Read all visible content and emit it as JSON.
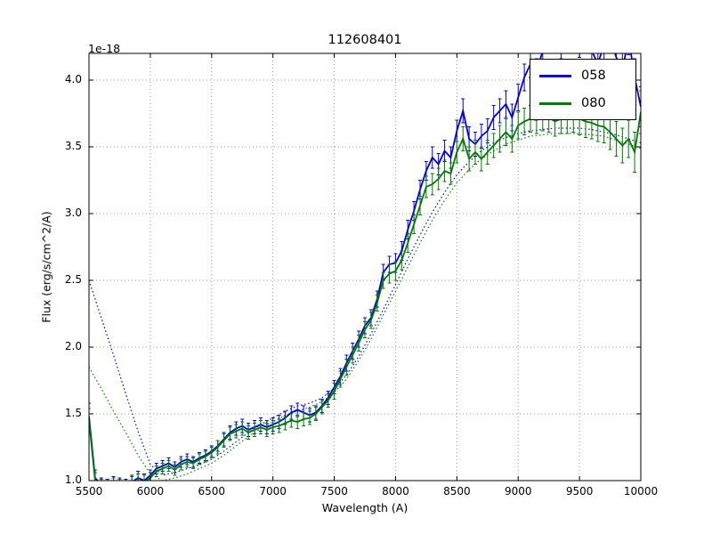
{
  "chart_data": {
    "type": "line",
    "title": "112608401",
    "xlabel": "Wavelength (A)",
    "ylabel": "Flux (erg/s/cm^2/A)",
    "y_offset_label": "1e-18",
    "xlim": [
      5500,
      10000
    ],
    "ylim": [
      1.0,
      4.2
    ],
    "xticks": [
      5500,
      6000,
      6500,
      7000,
      7500,
      8000,
      8500,
      9000,
      9500,
      10000
    ],
    "xtick_labels": [
      "5500",
      "6000",
      "6500",
      "7000",
      "7500",
      "8000",
      "8500",
      "9000",
      "9500",
      "10000"
    ],
    "yticks": [
      1.0,
      1.5,
      2.0,
      2.5,
      3.0,
      3.5,
      4.0
    ],
    "ytick_labels": [
      "1.0",
      "1.5",
      "2.0",
      "2.5",
      "3.0",
      "3.5",
      "4.0"
    ],
    "grid": true,
    "grid_color": "#999999",
    "background": "#ffffff",
    "legend_position": "upper right",
    "legend_labels": [
      "058",
      "080"
    ],
    "series": [
      {
        "name": "058",
        "style": "errorbar-line",
        "color": "#0000dc",
        "x": [
          5500,
          5550,
          5600,
          5650,
          5700,
          5750,
          5800,
          5850,
          5900,
          5950,
          6000,
          6050,
          6100,
          6150,
          6200,
          6250,
          6300,
          6350,
          6400,
          6450,
          6500,
          6550,
          6600,
          6650,
          6700,
          6750,
          6800,
          6850,
          6900,
          6950,
          7000,
          7050,
          7100,
          7150,
          7200,
          7250,
          7300,
          7350,
          7400,
          7450,
          7500,
          7550,
          7600,
          7650,
          7700,
          7750,
          7800,
          7850,
          7900,
          7950,
          8000,
          8050,
          8100,
          8150,
          8200,
          8250,
          8300,
          8350,
          8400,
          8450,
          8500,
          8550,
          8600,
          8650,
          8700,
          8750,
          8800,
          8850,
          8900,
          8950,
          9000,
          9050,
          9100,
          9150,
          9200,
          9250,
          9300,
          9350,
          9400,
          9450,
          9500,
          9550,
          9600,
          9650,
          9700,
          9750,
          9800,
          9850,
          9900,
          9950,
          10000
        ],
        "y": [
          1.48,
          1.02,
          0.97,
          0.96,
          0.98,
          0.97,
          0.96,
          0.99,
          1.02,
          1.0,
          1.04,
          1.09,
          1.11,
          1.13,
          1.1,
          1.14,
          1.16,
          1.14,
          1.17,
          1.19,
          1.22,
          1.26,
          1.31,
          1.36,
          1.39,
          1.41,
          1.38,
          1.4,
          1.42,
          1.4,
          1.42,
          1.44,
          1.47,
          1.51,
          1.53,
          1.51,
          1.49,
          1.51,
          1.56,
          1.62,
          1.7,
          1.78,
          1.88,
          1.97,
          2.06,
          2.16,
          2.22,
          2.36,
          2.56,
          2.62,
          2.63,
          2.72,
          2.88,
          3.02,
          3.18,
          3.32,
          3.42,
          3.37,
          3.47,
          3.42,
          3.62,
          3.77,
          3.56,
          3.52,
          3.58,
          3.62,
          3.72,
          3.77,
          3.82,
          3.72,
          3.87,
          4.02,
          4.12,
          4.06,
          4.22,
          4.38,
          4.32,
          4.27,
          4.42,
          4.33,
          4.28,
          4.38,
          4.22,
          4.12,
          4.27,
          4.32,
          4.17,
          4.07,
          4.32,
          4.02,
          3.8
        ],
        "yerr": [
          0.1,
          0.06,
          0.05,
          0.05,
          0.05,
          0.05,
          0.05,
          0.05,
          0.05,
          0.05,
          0.04,
          0.04,
          0.04,
          0.04,
          0.04,
          0.04,
          0.04,
          0.04,
          0.04,
          0.04,
          0.04,
          0.04,
          0.05,
          0.05,
          0.05,
          0.05,
          0.05,
          0.05,
          0.05,
          0.05,
          0.05,
          0.05,
          0.05,
          0.05,
          0.05,
          0.05,
          0.05,
          0.05,
          0.05,
          0.05,
          0.05,
          0.06,
          0.06,
          0.06,
          0.06,
          0.06,
          0.06,
          0.06,
          0.06,
          0.06,
          0.07,
          0.07,
          0.07,
          0.07,
          0.07,
          0.07,
          0.08,
          0.08,
          0.08,
          0.08,
          0.08,
          0.09,
          0.09,
          0.09,
          0.09,
          0.09,
          0.09,
          0.09,
          0.1,
          0.1,
          0.1,
          0.1,
          0.1,
          0.1,
          0.1,
          0.11,
          0.11,
          0.11,
          0.11,
          0.11,
          0.11,
          0.12,
          0.12,
          0.12,
          0.12,
          0.12,
          0.13,
          0.13,
          0.13,
          0.14,
          0.15
        ]
      },
      {
        "name": "080",
        "style": "errorbar-line",
        "color": "#007a00",
        "x": [
          5500,
          5550,
          5600,
          5650,
          5700,
          5750,
          5800,
          5850,
          5900,
          5950,
          6000,
          6050,
          6100,
          6150,
          6200,
          6250,
          6300,
          6350,
          6400,
          6450,
          6500,
          6550,
          6600,
          6650,
          6700,
          6750,
          6800,
          6850,
          6900,
          6950,
          7000,
          7050,
          7100,
          7150,
          7200,
          7250,
          7300,
          7350,
          7400,
          7450,
          7500,
          7550,
          7600,
          7650,
          7700,
          7750,
          7800,
          7850,
          7900,
          7950,
          8000,
          8050,
          8100,
          8150,
          8200,
          8250,
          8300,
          8350,
          8400,
          8450,
          8500,
          8550,
          8600,
          8650,
          8700,
          8750,
          8800,
          8850,
          8900,
          8950,
          9000,
          9050,
          9100,
          9150,
          9200,
          9250,
          9300,
          9350,
          9400,
          9450,
          9500,
          9550,
          9600,
          9650,
          9700,
          9750,
          9800,
          9850,
          9900,
          9950,
          10000
        ],
        "y": [
          1.45,
          1.0,
          0.96,
          0.95,
          0.97,
          0.96,
          0.95,
          0.98,
          1.0,
          0.99,
          1.02,
          1.07,
          1.09,
          1.11,
          1.08,
          1.12,
          1.14,
          1.13,
          1.16,
          1.18,
          1.21,
          1.25,
          1.3,
          1.35,
          1.37,
          1.39,
          1.36,
          1.38,
          1.4,
          1.38,
          1.4,
          1.41,
          1.43,
          1.45,
          1.44,
          1.46,
          1.47,
          1.5,
          1.55,
          1.6,
          1.67,
          1.76,
          1.85,
          1.94,
          2.03,
          2.13,
          2.2,
          2.33,
          2.5,
          2.55,
          2.57,
          2.65,
          2.78,
          2.92,
          3.06,
          3.2,
          3.22,
          3.26,
          3.32,
          3.3,
          3.46,
          3.56,
          3.41,
          3.46,
          3.41,
          3.46,
          3.51,
          3.56,
          3.61,
          3.56,
          3.66,
          3.69,
          3.71,
          3.7,
          3.73,
          3.72,
          3.69,
          3.71,
          3.71,
          3.72,
          3.71,
          3.69,
          3.68,
          3.66,
          3.65,
          3.61,
          3.56,
          3.51,
          3.56,
          3.46,
          3.76
        ],
        "yerr": [
          0.09,
          0.06,
          0.05,
          0.05,
          0.05,
          0.05,
          0.05,
          0.05,
          0.05,
          0.05,
          0.04,
          0.04,
          0.04,
          0.04,
          0.04,
          0.04,
          0.04,
          0.04,
          0.04,
          0.04,
          0.04,
          0.05,
          0.05,
          0.05,
          0.05,
          0.05,
          0.05,
          0.05,
          0.05,
          0.05,
          0.05,
          0.05,
          0.05,
          0.05,
          0.05,
          0.05,
          0.05,
          0.05,
          0.05,
          0.05,
          0.06,
          0.06,
          0.06,
          0.06,
          0.06,
          0.06,
          0.06,
          0.06,
          0.06,
          0.07,
          0.07,
          0.07,
          0.07,
          0.07,
          0.07,
          0.08,
          0.08,
          0.08,
          0.08,
          0.08,
          0.08,
          0.09,
          0.09,
          0.09,
          0.09,
          0.09,
          0.09,
          0.1,
          0.1,
          0.1,
          0.1,
          0.1,
          0.1,
          0.1,
          0.11,
          0.11,
          0.11,
          0.11,
          0.11,
          0.11,
          0.12,
          0.12,
          0.12,
          0.12,
          0.12,
          0.13,
          0.13,
          0.13,
          0.14,
          0.15,
          0.16
        ]
      },
      {
        "name": "058-dotted",
        "style": "dotted",
        "color": "#0000dc",
        "x": [
          5500,
          5600,
          5700,
          5800,
          5900,
          6000,
          6100,
          6200,
          6300,
          6400,
          6500,
          6600,
          6700,
          6800,
          6900,
          7000,
          7100,
          7200,
          7300,
          7400,
          7500,
          7600,
          7700,
          7800,
          7900,
          8000,
          8100,
          8200,
          8300,
          8400,
          8500,
          8600,
          8700,
          8800,
          8900,
          9000,
          9100,
          9200,
          9300,
          9400,
          9500,
          9600,
          9700,
          9800,
          9900,
          10000
        ],
        "y": [
          2.5,
          2.22,
          1.94,
          1.65,
          1.37,
          1.12,
          1.04,
          1.06,
          1.09,
          1.12,
          1.16,
          1.22,
          1.29,
          1.36,
          1.42,
          1.47,
          1.52,
          1.56,
          1.58,
          1.62,
          1.69,
          1.79,
          1.93,
          2.1,
          2.28,
          2.47,
          2.66,
          2.84,
          3.01,
          3.16,
          3.29,
          3.39,
          3.47,
          3.53,
          3.57,
          3.6,
          3.62,
          3.63,
          3.64,
          3.64,
          3.64,
          3.63,
          3.61,
          3.59,
          3.56,
          3.53
        ]
      },
      {
        "name": "080-dotted",
        "style": "dotted",
        "color": "#007a00",
        "x": [
          5500,
          5600,
          5700,
          5800,
          5900,
          6000,
          6100,
          6200,
          6300,
          6400,
          6500,
          6600,
          6700,
          6800,
          6900,
          7000,
          7100,
          7200,
          7300,
          7400,
          7500,
          7600,
          7700,
          7800,
          7900,
          8000,
          8100,
          8200,
          8300,
          8400,
          8500,
          8600,
          8700,
          8800,
          8900,
          9000,
          9100,
          9200,
          9300,
          9400,
          9500,
          9600,
          9700,
          9800,
          9900,
          10000
        ],
        "y": [
          1.85,
          1.69,
          1.52,
          1.36,
          1.19,
          1.05,
          1.0,
          1.02,
          1.05,
          1.09,
          1.13,
          1.19,
          1.26,
          1.33,
          1.39,
          1.44,
          1.49,
          1.52,
          1.55,
          1.59,
          1.66,
          1.76,
          1.9,
          2.06,
          2.24,
          2.42,
          2.6,
          2.78,
          2.95,
          3.1,
          3.23,
          3.33,
          3.41,
          3.47,
          3.52,
          3.55,
          3.58,
          3.59,
          3.6,
          3.6,
          3.6,
          3.59,
          3.58,
          3.55,
          3.52,
          3.49
        ]
      }
    ]
  }
}
